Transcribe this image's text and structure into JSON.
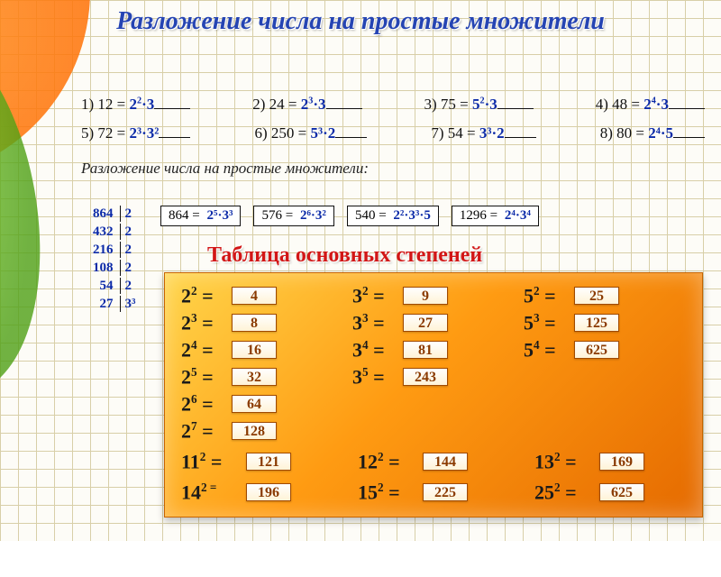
{
  "title": "Разложение числа на простые множители",
  "row1": [
    {
      "n": "1",
      "lhs": "12",
      "ans_base": "2",
      "ans_sup": "2",
      "ans_rest": "·3"
    },
    {
      "n": "2",
      "lhs": "24",
      "ans_base": "2",
      "ans_sup": "3",
      "ans_rest": "·3"
    },
    {
      "n": "3",
      "lhs": "75",
      "ans_base": "5",
      "ans_sup": "2",
      "ans_rest": "·3"
    },
    {
      "n": "4",
      "lhs": "48",
      "ans_base": "2",
      "ans_sup": "4",
      "ans_rest": "·3"
    }
  ],
  "row2": [
    {
      "n": "5",
      "lhs": "72",
      "ans": "2³·3²"
    },
    {
      "n": "6",
      "lhs": "250",
      "ans": "5³·2"
    },
    {
      "n": "7",
      "lhs": "54",
      "ans": "3³·2"
    },
    {
      "n": "8",
      "lhs": "80",
      "ans": "2⁴·5"
    }
  ],
  "subhead": "Разложение  числа на простые множители:",
  "factor_tree": [
    {
      "num": "864",
      "fac": "2"
    },
    {
      "num": "432",
      "fac": "2"
    },
    {
      "num": "216",
      "fac": "2"
    },
    {
      "num": "108",
      "fac": "2"
    },
    {
      "num": "54",
      "fac": "2"
    },
    {
      "num": "27",
      "fac": "3³"
    }
  ],
  "result_boxes": [
    {
      "lhs": "864 =",
      "ans": "2⁵·3³"
    },
    {
      "lhs": "576 =",
      "ans": "2⁶·3²"
    },
    {
      "lhs": "540 =",
      "ans": "2²·3³·5"
    },
    {
      "lhs": "1296 =",
      "ans": "2⁴·3⁴"
    }
  ],
  "table_title": "Таблица основных степеней",
  "powers": {
    "twos": [
      {
        "e": "2",
        "v": "4"
      },
      {
        "e": "3",
        "v": "8"
      },
      {
        "e": "4",
        "v": "16"
      },
      {
        "e": "5",
        "v": "32"
      },
      {
        "e": "6",
        "v": "64"
      },
      {
        "e": "7",
        "v": "128"
      }
    ],
    "threes": [
      {
        "e": "2",
        "v": "9"
      },
      {
        "e": "3",
        "v": "27"
      },
      {
        "e": "4",
        "v": "81"
      },
      {
        "e": "5",
        "v": "243"
      }
    ],
    "fives": [
      {
        "e": "2",
        "v": "25"
      },
      {
        "e": "3",
        "v": "125"
      },
      {
        "e": "4",
        "v": "625"
      }
    ],
    "bottom1": [
      {
        "b": "11",
        "e": "2",
        "v": "121"
      },
      {
        "b": "12",
        "e": "2",
        "v": "144"
      },
      {
        "b": "13",
        "e": "2",
        "v": "169"
      }
    ],
    "bottom2": [
      {
        "b": "14",
        "e": "2 =",
        "v": "196",
        "noeq": true
      },
      {
        "b": "15",
        "e": "2",
        "v": "225"
      },
      {
        "b": "25",
        "e": "2",
        "v": "625"
      }
    ]
  },
  "colors": {
    "answer": "#0b2aa8",
    "valbox_text": "#8a3a00",
    "title": "#2544b3",
    "table_title": "#d21616"
  }
}
